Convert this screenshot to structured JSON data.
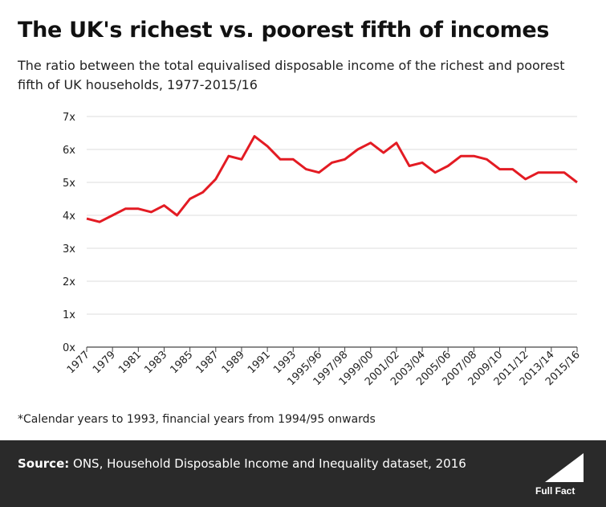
{
  "title": "The UK's richest vs. poorest fifth of incomes",
  "subtitle": "The ratio between the total equivalised disposable income of the richest and poorest fifth of UK households, 1977-2015/16",
  "footnote": "*Calendar years to 1993, financial years from 1994/95 onwards",
  "footer": {
    "source_label": "Source:",
    "source_text": "ONS, Household Disposable Income and Inequality dataset, 2016",
    "logo_text": "Full Fact"
  },
  "colors": {
    "line": "#e31b23",
    "grid": "#dddddd",
    "footer_bg": "#2a2a2a"
  },
  "chart_data": {
    "type": "line",
    "ylim": [
      0,
      7
    ],
    "yticks": [
      0,
      1,
      2,
      3,
      4,
      5,
      6,
      7
    ],
    "ytick_labels": [
      "0x",
      "1x",
      "2x",
      "3x",
      "4x",
      "5x",
      "6x",
      "7x"
    ],
    "xtick_labels": [
      "1977",
      "1979",
      "1981",
      "1983",
      "1985",
      "1987",
      "1989",
      "1991",
      "1993",
      "1995/96",
      "1997/98",
      "1999/00",
      "2001/02",
      "2003/04",
      "2005/06",
      "2007/08",
      "2009/10",
      "2011/12",
      "2013/14",
      "2015/16"
    ],
    "x": [
      "1977",
      "1978",
      "1979",
      "1980",
      "1981",
      "1982",
      "1983",
      "1984",
      "1985",
      "1986",
      "1987",
      "1988",
      "1989",
      "1990",
      "1991",
      "1992",
      "1993",
      "1994/95",
      "1995/96",
      "1996/97",
      "1997/98",
      "1998/99",
      "1999/00",
      "2000/01",
      "2001/02",
      "2002/03",
      "2003/04",
      "2004/05",
      "2005/06",
      "2006/07",
      "2007/08",
      "2008/09",
      "2009/10",
      "2010/11",
      "2011/12",
      "2012/13",
      "2013/14",
      "2014/15",
      "2015/16"
    ],
    "series": [
      {
        "values": [
          3.9,
          3.8,
          4.0,
          4.2,
          4.2,
          4.1,
          4.3,
          4.0,
          4.5,
          4.7,
          5.1,
          5.8,
          5.7,
          6.4,
          6.1,
          5.7,
          5.7,
          5.4,
          5.3,
          5.6,
          5.7,
          6.0,
          6.2,
          5.9,
          6.2,
          5.5,
          5.6,
          5.3,
          5.5,
          5.8,
          5.8,
          5.7,
          5.4,
          5.4,
          5.1,
          5.3,
          5.3,
          5.3,
          5.0
        ]
      }
    ],
    "grid": true
  }
}
